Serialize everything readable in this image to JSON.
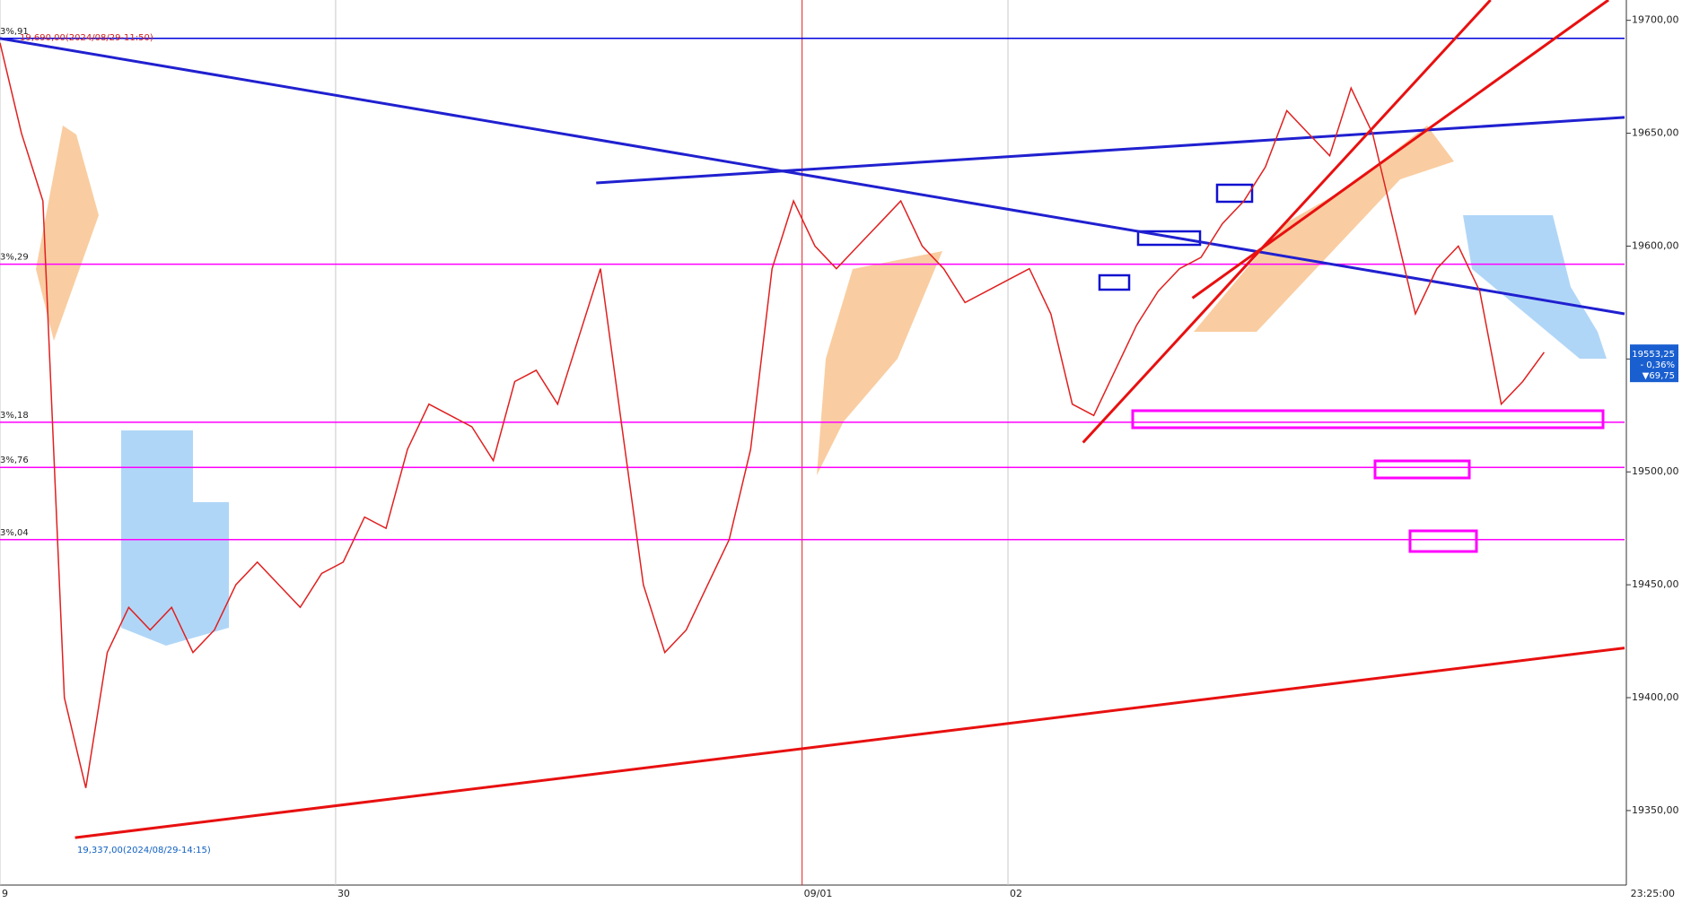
{
  "chart_data": {
    "type": "line",
    "x": [
      0,
      1,
      2,
      3,
      4,
      5,
      6,
      7,
      8,
      9,
      10,
      11,
      12,
      13,
      14,
      15,
      16,
      17,
      18,
      19,
      20,
      21,
      22,
      23,
      24,
      25,
      26,
      27,
      28,
      29,
      30,
      31,
      32,
      33,
      34,
      35,
      36,
      37,
      38,
      39,
      40,
      41,
      42,
      43,
      44,
      45,
      46,
      47,
      48,
      49,
      50,
      51,
      52,
      53,
      54,
      55,
      56,
      57,
      58,
      59,
      60,
      61,
      62,
      63,
      64,
      65,
      66,
      67,
      68,
      69,
      70,
      71,
      72
    ],
    "series": [
      {
        "color": "#e02020",
        "values": [
          19690,
          19650,
          19620,
          19400,
          19360,
          19420,
          19440,
          19430,
          19440,
          19420,
          19430,
          19450,
          19460,
          19450,
          19440,
          19455,
          19460,
          19480,
          19475,
          19510,
          19530,
          19525,
          19520,
          19505,
          19540,
          19545,
          19530,
          19560,
          19590,
          19520,
          19450,
          19420,
          19430,
          19450,
          19470,
          19510,
          19590,
          19620,
          19600,
          19590,
          19600,
          19610,
          19620,
          19600,
          19590,
          19575,
          19580,
          19585,
          19590,
          19570,
          19530,
          19525,
          19545,
          19565,
          19580,
          19590,
          19595,
          19610,
          19620,
          19635,
          19660,
          19650,
          19640,
          19670,
          19650,
          19610,
          19570,
          19590,
          19600,
          19580,
          19530,
          19540,
          19553
        ]
      }
    ],
    "xlim": [
      0,
      75.75
    ],
    "xticks": [
      {
        "value": 0,
        "label": "9"
      },
      {
        "value": 15.65,
        "label": "30"
      },
      {
        "value": 37.4,
        "label": "09/01"
      },
      {
        "value": 47,
        "label": "02"
      }
    ],
    "time_label": "23:25:00",
    "ylim": [
      19317,
      19709
    ],
    "yticks": [
      {
        "value": 19350,
        "label": "19350,00"
      },
      {
        "value": 19400,
        "label": "19400,00"
      },
      {
        "value": 19450,
        "label": "19450,00"
      },
      {
        "value": 19500,
        "label": "19500,00"
      },
      {
        "value": 19550,
        "label": "19550,00"
      },
      {
        "value": 19600,
        "label": "19600,00"
      },
      {
        "value": 19650,
        "label": "19650,00"
      },
      {
        "value": 19700,
        "label": "19700,00"
      }
    ],
    "hlines": [
      {
        "value": 19692,
        "color": "#0000dd",
        "label": "3%,91"
      },
      {
        "value": 19592,
        "color": "#ff00ff",
        "label": "3%,29"
      },
      {
        "value": 19522,
        "color": "#ff00ff",
        "label": "3%,18"
      },
      {
        "value": 19502,
        "color": "#ff00ff",
        "label": "3%,76"
      },
      {
        "value": 19470,
        "color": "#ff00ff",
        "label": "3%,04"
      }
    ],
    "trendlines": [
      {
        "color": "#2020d0",
        "x": [
          0,
          75.75
        ],
        "y": [
          19692,
          19570
        ]
      },
      {
        "color": "#2020d0",
        "x": [
          27.8,
          75.75
        ],
        "y": [
          19628,
          19657
        ]
      },
      {
        "color": "#e81010",
        "x": [
          3.5,
          75.75
        ],
        "y": [
          19338,
          19422
        ]
      },
      {
        "color": "#e81010",
        "x": [
          50.5,
          69.5
        ],
        "y": [
          19513,
          19709
        ]
      },
      {
        "color": "#e81010",
        "x": [
          55.6,
          75
        ],
        "y": [
          19577,
          19709
        ]
      }
    ],
    "high_note": "19,690,00(2024/08/29-11:50)",
    "low_note": "19,337,00(2024/08/29-14:15)",
    "price_tag": {
      "value": 19553.25,
      "labels": [
        "19553,25",
        "- 0,36%",
        "▼69,75"
      ]
    }
  }
}
